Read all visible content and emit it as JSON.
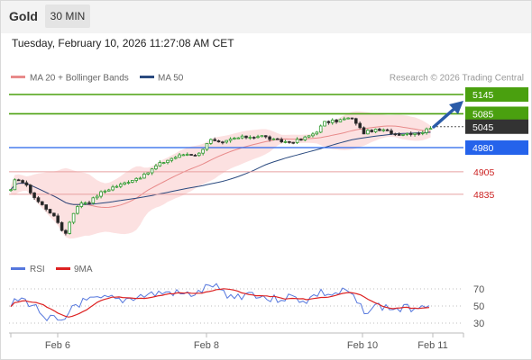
{
  "header": {
    "asset": "Gold",
    "interval": "30 MIN",
    "timestamp": "Tuesday, February 10, 2026 11:27:08 AM CET"
  },
  "legend": {
    "ma20_label": "MA 20 + Bollinger Bands",
    "ma50_label": "MA 50",
    "credit": "Research © 2026 Trading Central",
    "rsi_label": "RSI",
    "rsi_ma_label": "9MA"
  },
  "colors": {
    "resistance": "#4aa00f",
    "current": "#333333",
    "pivot": "#2563eb",
    "support": "#cc2222",
    "ma20": "#e88a8a",
    "ma50": "#2a4a7f",
    "bollinger_fill": "#fbdada",
    "arrow": "#2a5ba8",
    "rsi": "#5577dd",
    "rsi_ma": "#dd2222"
  },
  "levels": [
    {
      "value": "5145",
      "kind": "resistance"
    },
    {
      "value": "5085",
      "kind": "resistance"
    },
    {
      "value": "5045",
      "kind": "current"
    },
    {
      "value": "4980",
      "kind": "pivot"
    },
    {
      "value": "4905",
      "kind": "support"
    },
    {
      "value": "4835",
      "kind": "support"
    }
  ],
  "rsi_ticks": [
    "70",
    "50",
    "30"
  ],
  "x_labels": [
    "Feb 6",
    "Feb 8",
    "Feb 10",
    "Feb 11"
  ],
  "arrow_direction": "up"
}
